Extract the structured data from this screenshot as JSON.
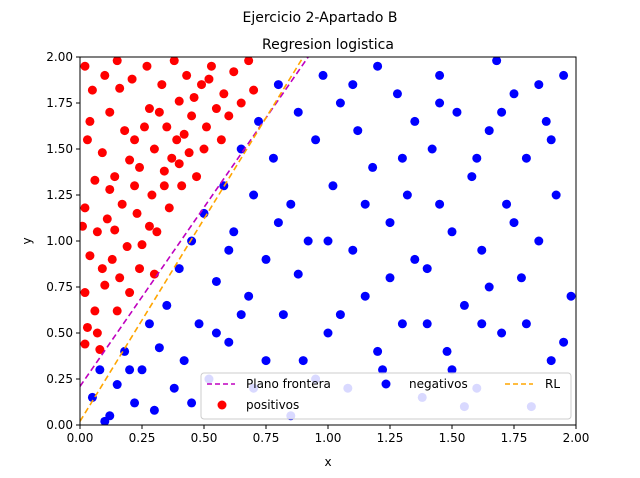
{
  "chart_data": {
    "type": "scatter",
    "suptitle": "Ejercicio 2-Apartado B",
    "title": "Regresion logistica",
    "xlabel": "x",
    "ylabel": "y",
    "xlim": [
      0.0,
      2.0
    ],
    "ylim": [
      0.0,
      2.0
    ],
    "xticks": [
      "0.00",
      "0.25",
      "0.50",
      "0.75",
      "1.00",
      "1.25",
      "1.50",
      "1.75",
      "2.00"
    ],
    "yticks": [
      "0.00",
      "0.25",
      "0.50",
      "0.75",
      "1.00",
      "1.25",
      "1.50",
      "1.75",
      "2.00"
    ],
    "grid": false,
    "legend_position": "bottom-center",
    "lines": [
      {
        "name": "Plano frontera",
        "color": "#bf00bf",
        "style": "dashed",
        "x": [
          0.0,
          0.92
        ],
        "y": [
          0.21,
          2.0
        ]
      },
      {
        "name": "RL",
        "color": "#ffa500",
        "style": "dashed",
        "x": [
          0.0,
          0.9
        ],
        "y": [
          0.02,
          2.0
        ]
      }
    ],
    "series": [
      {
        "name": "positivos",
        "color": "#ff0000",
        "points": [
          [
            0.02,
            1.95
          ],
          [
            0.05,
            1.82
          ],
          [
            0.03,
            1.55
          ],
          [
            0.06,
            1.33
          ],
          [
            0.02,
            1.18
          ],
          [
            0.04,
            0.92
          ],
          [
            0.02,
            0.72
          ],
          [
            0.03,
            0.53
          ],
          [
            0.02,
            0.44
          ],
          [
            0.07,
            0.5
          ],
          [
            0.1,
            1.9
          ],
          [
            0.12,
            1.7
          ],
          [
            0.09,
            1.48
          ],
          [
            0.11,
            1.12
          ],
          [
            0.13,
            0.9
          ],
          [
            0.1,
            0.76
          ],
          [
            0.08,
            0.41
          ],
          [
            0.15,
            1.98
          ],
          [
            0.16,
            1.83
          ],
          [
            0.18,
            1.6
          ],
          [
            0.14,
            1.35
          ],
          [
            0.17,
            1.2
          ],
          [
            0.19,
            0.97
          ],
          [
            0.16,
            0.8
          ],
          [
            0.21,
            1.88
          ],
          [
            0.22,
            1.55
          ],
          [
            0.24,
            1.4
          ],
          [
            0.23,
            1.15
          ],
          [
            0.25,
            0.98
          ],
          [
            0.24,
            0.85
          ],
          [
            0.27,
            1.95
          ],
          [
            0.28,
            1.72
          ],
          [
            0.3,
            1.5
          ],
          [
            0.29,
            1.25
          ],
          [
            0.31,
            1.05
          ],
          [
            0.3,
            0.82
          ],
          [
            0.33,
            1.85
          ],
          [
            0.35,
            1.62
          ],
          [
            0.34,
            1.38
          ],
          [
            0.36,
            1.18
          ],
          [
            0.38,
            1.98
          ],
          [
            0.4,
            1.76
          ],
          [
            0.39,
            1.55
          ],
          [
            0.41,
            1.3
          ],
          [
            0.43,
            1.9
          ],
          [
            0.45,
            1.68
          ],
          [
            0.44,
            1.48
          ],
          [
            0.47,
            1.35
          ],
          [
            0.49,
            1.85
          ],
          [
            0.51,
            1.62
          ],
          [
            0.5,
            1.5
          ],
          [
            0.53,
            1.95
          ],
          [
            0.55,
            1.72
          ],
          [
            0.57,
            1.55
          ],
          [
            0.58,
            1.8
          ],
          [
            0.6,
            1.68
          ],
          [
            0.62,
            1.92
          ],
          [
            0.65,
            1.75
          ],
          [
            0.68,
            1.98
          ],
          [
            0.7,
            1.82
          ],
          [
            0.04,
            1.65
          ],
          [
            0.07,
            1.05
          ],
          [
            0.12,
            1.28
          ],
          [
            0.2,
            1.44
          ],
          [
            0.26,
            1.62
          ],
          [
            0.32,
            1.7
          ],
          [
            0.37,
            1.45
          ],
          [
            0.42,
            1.58
          ],
          [
            0.46,
            1.78
          ],
          [
            0.52,
            1.88
          ],
          [
            0.06,
            0.62
          ],
          [
            0.15,
            0.62
          ],
          [
            0.2,
            0.72
          ],
          [
            0.09,
            0.85
          ],
          [
            0.01,
            1.08
          ],
          [
            0.14,
            1.06
          ],
          [
            0.22,
            1.3
          ],
          [
            0.28,
            1.08
          ],
          [
            0.34,
            1.3
          ],
          [
            0.4,
            1.42
          ]
        ]
      },
      {
        "name": "negativos",
        "color": "#0000ff",
        "points": [
          [
            0.05,
            0.15
          ],
          [
            0.08,
            0.3
          ],
          [
            0.12,
            0.05
          ],
          [
            0.15,
            0.22
          ],
          [
            0.18,
            0.4
          ],
          [
            0.22,
            0.12
          ],
          [
            0.25,
            0.3
          ],
          [
            0.28,
            0.55
          ],
          [
            0.3,
            0.08
          ],
          [
            0.32,
            0.42
          ],
          [
            0.35,
            0.65
          ],
          [
            0.38,
            0.2
          ],
          [
            0.4,
            0.85
          ],
          [
            0.42,
            0.35
          ],
          [
            0.45,
            1.0
          ],
          [
            0.48,
            0.55
          ],
          [
            0.5,
            1.15
          ],
          [
            0.52,
            0.25
          ],
          [
            0.55,
            0.78
          ],
          [
            0.58,
            1.3
          ],
          [
            0.6,
            0.45
          ],
          [
            0.62,
            1.05
          ],
          [
            0.65,
            1.5
          ],
          [
            0.68,
            0.7
          ],
          [
            0.7,
            1.25
          ],
          [
            0.72,
            1.65
          ],
          [
            0.75,
            0.9
          ],
          [
            0.78,
            1.45
          ],
          [
            0.8,
            1.85
          ],
          [
            0.82,
            0.6
          ],
          [
            0.85,
            1.2
          ],
          [
            0.88,
            1.7
          ],
          [
            0.9,
            0.35
          ],
          [
            0.92,
            1.0
          ],
          [
            0.95,
            1.55
          ],
          [
            0.98,
            1.9
          ],
          [
            1.0,
            0.5
          ],
          [
            1.02,
            1.3
          ],
          [
            1.05,
            1.75
          ],
          [
            1.08,
            0.2
          ],
          [
            1.1,
            0.95
          ],
          [
            1.12,
            1.6
          ],
          [
            1.15,
            0.7
          ],
          [
            1.18,
            1.4
          ],
          [
            1.2,
            1.95
          ],
          [
            1.22,
            0.3
          ],
          [
            1.25,
            1.1
          ],
          [
            1.28,
            1.8
          ],
          [
            1.3,
            0.55
          ],
          [
            1.32,
            1.25
          ],
          [
            1.35,
            1.65
          ],
          [
            1.38,
            0.15
          ],
          [
            1.4,
            0.85
          ],
          [
            1.42,
            1.5
          ],
          [
            1.45,
            1.9
          ],
          [
            1.48,
            0.4
          ],
          [
            1.5,
            1.05
          ],
          [
            1.52,
            1.7
          ],
          [
            1.55,
            0.65
          ],
          [
            1.58,
            1.35
          ],
          [
            1.6,
            0.2
          ],
          [
            1.62,
            0.95
          ],
          [
            1.65,
            1.6
          ],
          [
            1.68,
            1.98
          ],
          [
            1.7,
            0.5
          ],
          [
            1.72,
            1.2
          ],
          [
            1.75,
            1.8
          ],
          [
            1.78,
            0.8
          ],
          [
            1.8,
            1.45
          ],
          [
            1.82,
            0.1
          ],
          [
            1.85,
            1.0
          ],
          [
            1.88,
            1.65
          ],
          [
            1.9,
            0.35
          ],
          [
            1.92,
            1.25
          ],
          [
            1.95,
            1.9
          ],
          [
            1.98,
            0.7
          ],
          [
            0.1,
            0.02
          ],
          [
            0.2,
            0.3
          ],
          [
            0.45,
            0.12
          ],
          [
            0.6,
            0.95
          ],
          [
            0.75,
            0.35
          ],
          [
            0.88,
            0.82
          ],
          [
            1.05,
            0.6
          ],
          [
            1.2,
            0.4
          ],
          [
            1.35,
            0.9
          ],
          [
            1.5,
            0.3
          ],
          [
            1.65,
            0.75
          ],
          [
            1.8,
            0.55
          ],
          [
            1.95,
            0.45
          ],
          [
            0.55,
            0.5
          ],
          [
            0.7,
            0.2
          ],
          [
            0.85,
            0.05
          ],
          [
            1.0,
            1.0
          ],
          [
            1.15,
            1.2
          ],
          [
            1.3,
            1.45
          ],
          [
            1.45,
            1.2
          ],
          [
            1.6,
            1.45
          ],
          [
            1.75,
            1.1
          ],
          [
            1.9,
            1.55
          ],
          [
            1.25,
            0.8
          ],
          [
            0.95,
            0.25
          ],
          [
            1.4,
            0.55
          ],
          [
            1.55,
            0.1
          ],
          [
            1.7,
            1.7
          ],
          [
            1.85,
            1.85
          ],
          [
            0.65,
            0.6
          ],
          [
            0.8,
            1.1
          ],
          [
            1.1,
            1.85
          ],
          [
            1.45,
            1.75
          ],
          [
            1.62,
            0.55
          ]
        ]
      }
    ]
  }
}
